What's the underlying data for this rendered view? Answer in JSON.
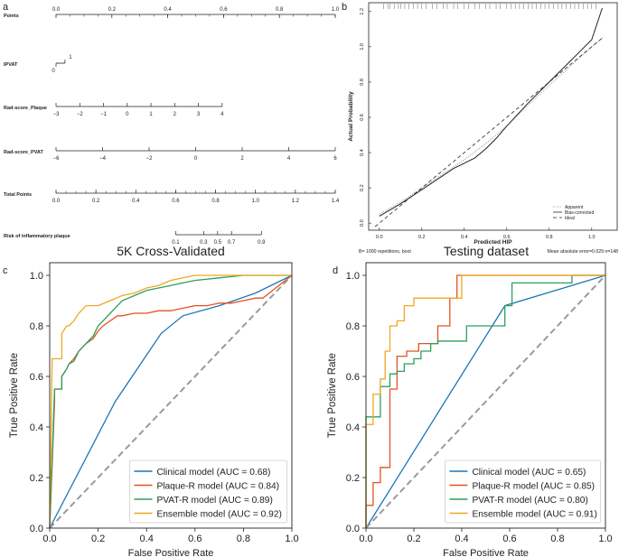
{
  "colors": {
    "clinical": "#1f77b4",
    "plaque": "#e6501e",
    "pvat": "#2ca05a",
    "ensemble": "#f0a820",
    "diag": "#9a9a9a",
    "ink": "#222222"
  },
  "chart_data": [
    {
      "panel": "a",
      "type": "nomogram",
      "title": "",
      "rows": [
        {
          "label": "Points",
          "range": [
            0,
            1
          ],
          "ticks": [
            "0.0",
            "0.2",
            "0.4",
            "0.6",
            "0.8",
            "1.0"
          ],
          "tick_values": [
            0,
            0.2,
            0.4,
            0.6,
            0.8,
            1.0
          ],
          "minor_step": 0.05,
          "labels_above": true
        },
        {
          "label": "IPVAT",
          "range": [
            0,
            1
          ],
          "ticks": [
            "0",
            "1"
          ],
          "tick_values": [
            0,
            1
          ],
          "span_points": [
            0,
            0.032
          ]
        },
        {
          "label": "Rad-score_Plaque",
          "range": [
            -3,
            4
          ],
          "ticks": [
            "−3",
            "−2",
            "−1",
            "0",
            "1",
            "2",
            "3",
            "4"
          ],
          "tick_values": [
            -3,
            -2,
            -1,
            0,
            1,
            2,
            3,
            4
          ],
          "span_points": [
            0,
            0.595
          ]
        },
        {
          "label": "Rad-score_PVAT",
          "range": [
            -6,
            6
          ],
          "ticks": [
            "−6",
            "−4",
            "−2",
            "0",
            "2",
            "4",
            "6"
          ],
          "tick_values": [
            -6,
            -4,
            -2,
            0,
            2,
            4,
            6
          ],
          "span_points": [
            0,
            1.0
          ]
        },
        {
          "label": "Total Points",
          "range": [
            0,
            1.4
          ],
          "ticks": [
            "0.0",
            "0.2",
            "0.4",
            "0.6",
            "0.8",
            "1.0",
            "1.2",
            "1.4"
          ],
          "tick_values": [
            0,
            0.2,
            0.4,
            0.6,
            0.8,
            1.0,
            1.2,
            1.4
          ],
          "minor_step": 0.05
        },
        {
          "label": "Risk of inflammatory plaque",
          "range": [
            0.1,
            0.9
          ],
          "ticks": [
            "0.1",
            "0.3",
            "0.5",
            "0.7",
            "0.9"
          ],
          "tick_values": [
            0.1,
            0.3,
            0.5,
            0.7,
            0.9
          ],
          "tick_total_points": [
            0.6,
            0.74,
            0.81,
            0.88,
            1.03
          ]
        }
      ]
    },
    {
      "panel": "b",
      "type": "line",
      "title": "",
      "xlabel": "Predicted HIP",
      "ylabel": "Actual Probability",
      "xlim": [
        -0.05,
        1.12
      ],
      "ylim": [
        -0.04,
        1.25
      ],
      "xticks": [
        "0.0",
        "0.2",
        "0.4",
        "0.6",
        "0.8",
        "1.0"
      ],
      "xtick_values": [
        0,
        0.2,
        0.4,
        0.6,
        0.8,
        1.0
      ],
      "yticks": [
        "0.0",
        "0.2",
        "0.4",
        "0.6",
        "0.8",
        "1.0",
        "1.2"
      ],
      "ytick_values": [
        0,
        0.2,
        0.4,
        0.6,
        0.8,
        1.0,
        1.2
      ],
      "footnote_left": "B= 1000 repetitions, boot",
      "footnote_right": "Mean absolute error=0.029 n=148",
      "rug_values": [
        0.02,
        0.04,
        0.05,
        0.07,
        0.09,
        0.1,
        0.12,
        0.14,
        0.16,
        0.18,
        0.2,
        0.22,
        0.25,
        0.27,
        0.3,
        0.32,
        0.35,
        0.37,
        0.4,
        0.42,
        0.45,
        0.47,
        0.5,
        0.52,
        0.55,
        0.57,
        0.6,
        0.62,
        0.64,
        0.66,
        0.68,
        0.7,
        0.72,
        0.74,
        0.76,
        0.78,
        0.8,
        0.82,
        0.84,
        0.86,
        0.88,
        0.9,
        0.92,
        0.94,
        0.96,
        0.98,
        1.0,
        1.02
      ],
      "legend": [
        "Apparent",
        "Bias-corrected",
        "Ideal"
      ],
      "series": [
        {
          "name": "Apparent",
          "style": "dotted",
          "x": [
            0,
            0.1,
            0.2,
            0.3,
            0.4,
            0.5,
            0.6,
            0.7,
            0.8,
            0.9,
            1.0,
            1.05
          ],
          "y": [
            0.05,
            0.12,
            0.2,
            0.28,
            0.36,
            0.45,
            0.55,
            0.67,
            0.78,
            0.89,
            1.0,
            1.05
          ]
        },
        {
          "name": "Bias-corrected",
          "style": "solid",
          "x": [
            0,
            0.1,
            0.2,
            0.3,
            0.35,
            0.4,
            0.45,
            0.5,
            0.55,
            0.6,
            0.7,
            0.8,
            0.9,
            1.0,
            1.05
          ],
          "y": [
            0.04,
            0.11,
            0.19,
            0.27,
            0.31,
            0.34,
            0.37,
            0.42,
            0.48,
            0.55,
            0.68,
            0.8,
            0.92,
            1.04,
            1.22
          ]
        },
        {
          "name": "Ideal",
          "style": "dashed",
          "x": [
            -0.02,
            1.05
          ],
          "y": [
            -0.02,
            1.05
          ]
        }
      ]
    },
    {
      "panel": "c",
      "type": "line",
      "title": "5K  Cross-Validated",
      "xlabel": "False Positive Rate",
      "ylabel": "True Positive Rate",
      "xlim": [
        0,
        1
      ],
      "ylim": [
        0,
        1.05
      ],
      "xticks": [
        "0.0",
        "0.2",
        "0.4",
        "0.6",
        "0.8",
        "1.0"
      ],
      "xtick_values": [
        0,
        0.2,
        0.4,
        0.6,
        0.8,
        1.0
      ],
      "yticks": [
        "0.0",
        "0.2",
        "0.4",
        "0.6",
        "0.8",
        "1.0"
      ],
      "ytick_values": [
        0,
        0.2,
        0.4,
        0.6,
        0.8,
        1.0
      ],
      "legend": [
        "Clinical model (AUC = 0.68)",
        "Plaque-R model (AUC = 0.84)",
        "PVAT-R model (AUC = 0.89)",
        "Ensemble model (AUC = 0.92)"
      ],
      "series": [
        {
          "name": "Clinical model (AUC = 0.68)",
          "color_key": "clinical",
          "x": [
            0,
            0.27,
            0.46,
            0.55,
            0.7,
            0.85,
            1.0
          ],
          "y": [
            0,
            0.5,
            0.77,
            0.84,
            0.88,
            0.93,
            1.0
          ]
        },
        {
          "name": "Plaque-R model (AUC = 0.84)",
          "color_key": "plaque",
          "x": [
            0,
            0.02,
            0.02,
            0.05,
            0.05,
            0.07,
            0.08,
            0.1,
            0.12,
            0.15,
            0.18,
            0.2,
            0.22,
            0.25,
            0.28,
            0.3,
            0.35,
            0.4,
            0.45,
            0.5,
            0.55,
            0.6,
            0.65,
            0.7,
            0.75,
            0.8,
            0.85,
            0.88,
            1.0
          ],
          "y": [
            0,
            0.5,
            0.55,
            0.55,
            0.6,
            0.63,
            0.65,
            0.67,
            0.7,
            0.73,
            0.75,
            0.78,
            0.8,
            0.82,
            0.84,
            0.84,
            0.85,
            0.85,
            0.86,
            0.86,
            0.87,
            0.88,
            0.88,
            0.89,
            0.89,
            0.9,
            0.91,
            0.91,
            1.0
          ]
        },
        {
          "name": "PVAT-R model (AUC = 0.89)",
          "color_key": "pvat",
          "x": [
            0,
            0.02,
            0.05,
            0.05,
            0.07,
            0.08,
            0.1,
            0.12,
            0.15,
            0.18,
            0.2,
            0.22,
            0.25,
            0.28,
            0.3,
            0.35,
            0.4,
            0.45,
            0.5,
            0.55,
            0.6,
            0.7,
            0.8,
            1.0
          ],
          "y": [
            0,
            0.55,
            0.55,
            0.6,
            0.63,
            0.65,
            0.66,
            0.7,
            0.73,
            0.76,
            0.8,
            0.82,
            0.85,
            0.88,
            0.9,
            0.92,
            0.94,
            0.95,
            0.96,
            0.97,
            0.98,
            0.99,
            1.0,
            1.0
          ]
        },
        {
          "name": "Ensemble model (AUC = 0.92)",
          "color_key": "ensemble",
          "x": [
            0,
            0.01,
            0.05,
            0.05,
            0.07,
            0.08,
            0.1,
            0.12,
            0.15,
            0.2,
            0.25,
            0.3,
            0.35,
            0.4,
            0.45,
            0.5,
            0.55,
            0.6,
            0.7,
            0.8,
            1.0
          ],
          "y": [
            0,
            0.67,
            0.67,
            0.77,
            0.8,
            0.8,
            0.82,
            0.85,
            0.88,
            0.88,
            0.9,
            0.92,
            0.93,
            0.95,
            0.96,
            0.98,
            0.99,
            1.0,
            1.0,
            1.0,
            1.0
          ]
        },
        {
          "name": "chance",
          "color_key": "diag",
          "x": [
            0,
            1
          ],
          "y": [
            0,
            1
          ]
        }
      ]
    },
    {
      "panel": "d",
      "type": "line",
      "title": "Testing dataset",
      "xlabel": "False Positive Rate",
      "ylabel": "True Positive Rate",
      "xlim": [
        0,
        1
      ],
      "ylim": [
        0,
        1.05
      ],
      "xticks": [
        "0.0",
        "0.2",
        "0.4",
        "0.6",
        "0.8",
        "1.0"
      ],
      "xtick_values": [
        0,
        0.2,
        0.4,
        0.6,
        0.8,
        1.0
      ],
      "yticks": [
        "0.0",
        "0.2",
        "0.4",
        "0.6",
        "0.8",
        "1.0"
      ],
      "ytick_values": [
        0,
        0.2,
        0.4,
        0.6,
        0.8,
        1.0
      ],
      "legend": [
        "Clinical model (AUC = 0.65)",
        "Plaque-R model (AUC = 0.85)",
        "PVAT-R model (AUC = 0.80)",
        "Ensemble model (AUC = 0.91)"
      ],
      "series": [
        {
          "name": "Clinical model (AUC = 0.65)",
          "color_key": "clinical",
          "x": [
            0,
            0.58,
            1.0
          ],
          "y": [
            0,
            0.88,
            1.0
          ]
        },
        {
          "name": "Plaque-R model (AUC = 0.85)",
          "color_key": "plaque",
          "x": [
            0,
            0,
            0.03,
            0.03,
            0.06,
            0.06,
            0.1,
            0.1,
            0.13,
            0.13,
            0.17,
            0.17,
            0.22,
            0.22,
            0.3,
            0.3,
            0.35,
            0.35,
            0.38,
            0.38,
            1.0
          ],
          "y": [
            0,
            0.09,
            0.09,
            0.18,
            0.18,
            0.24,
            0.24,
            0.55,
            0.55,
            0.68,
            0.68,
            0.7,
            0.7,
            0.73,
            0.73,
            0.8,
            0.8,
            0.91,
            0.91,
            1.0,
            1.0
          ]
        },
        {
          "name": "PVAT-R model (AUC = 0.80)",
          "color_key": "pvat",
          "x": [
            0,
            0,
            0.06,
            0.06,
            0.1,
            0.1,
            0.13,
            0.13,
            0.16,
            0.16,
            0.2,
            0.2,
            0.23,
            0.23,
            0.27,
            0.27,
            0.3,
            0.3,
            0.42,
            0.42,
            0.58,
            0.58,
            0.61,
            0.61,
            0.86,
            0.86,
            1.0
          ],
          "y": [
            0,
            0.44,
            0.44,
            0.56,
            0.56,
            0.61,
            0.61,
            0.62,
            0.62,
            0.65,
            0.65,
            0.67,
            0.67,
            0.7,
            0.7,
            0.73,
            0.73,
            0.74,
            0.74,
            0.8,
            0.8,
            0.88,
            0.88,
            0.97,
            0.97,
            1.0,
            1.0
          ]
        },
        {
          "name": "Ensemble model (AUC = 0.91)",
          "color_key": "ensemble",
          "x": [
            0,
            0,
            0.03,
            0.03,
            0.06,
            0.06,
            0.08,
            0.08,
            0.1,
            0.1,
            0.13,
            0.13,
            0.16,
            0.16,
            0.2,
            0.2,
            0.4,
            0.4,
            1.0
          ],
          "y": [
            0,
            0.41,
            0.41,
            0.53,
            0.53,
            0.59,
            0.59,
            0.7,
            0.7,
            0.8,
            0.8,
            0.82,
            0.82,
            0.88,
            0.88,
            0.91,
            0.91,
            1.0,
            1.0
          ]
        },
        {
          "name": "chance",
          "color_key": "diag",
          "x": [
            0,
            1
          ],
          "y": [
            0,
            1
          ]
        }
      ]
    }
  ],
  "panel_labels": [
    "a",
    "b",
    "c",
    "d"
  ]
}
